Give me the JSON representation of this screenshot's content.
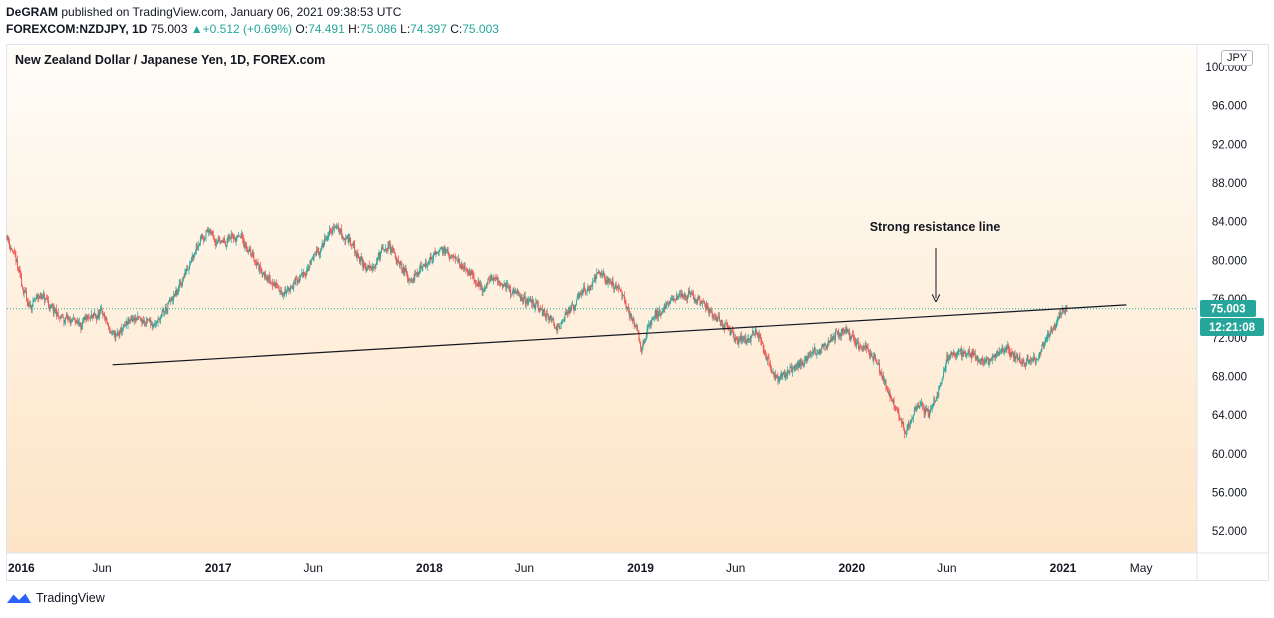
{
  "header": {
    "author": "DeGRAM",
    "published_text": "published on TradingView.com, January 06, 2021 09:38:53 UTC",
    "symbol": "FOREXCOM:NZDJPY",
    "interval": "1D",
    "last": "75.003",
    "change": "+0.512 (+0.69%)",
    "o_label": "O:",
    "o_value": "74.491",
    "h_label": "H:",
    "h_value": "75.086",
    "l_label": "L:",
    "l_value": "74.397",
    "c_label": "C:",
    "c_value": "75.003"
  },
  "chart_title": "New Zealand Dollar / Japanese Yen, 1D, FOREX.com",
  "currency": "JPY",
  "annotation": "Strong resistance line",
  "price_badge": "75.003",
  "countdown_badge": "12:21:08",
  "footer": {
    "brand": "TradingView"
  },
  "colors": {
    "up": "#26a69a",
    "down": "#ef5350",
    "line": "#131722",
    "badge": "#26a69a"
  },
  "chart_data": {
    "type": "candlestick",
    "title": "New Zealand Dollar / Japanese Yen, 1D, FOREX.com",
    "ylim": [
      49.5,
      101
    ],
    "y_ticks": [
      "100.000",
      "96.000",
      "92.000",
      "88.000",
      "84.000",
      "80.000",
      "76.000",
      "72.000",
      "68.000",
      "64.000",
      "60.000",
      "56.000",
      "52.000"
    ],
    "y_tick_values": [
      100,
      96,
      92,
      88,
      84,
      80,
      76,
      72,
      68,
      64,
      60,
      56,
      52
    ],
    "x_range": [
      2016.0,
      2021.55
    ],
    "x_ticks": [
      {
        "label": "2016",
        "t": 2016.0
      },
      {
        "label": "Jun",
        "t": 2016.45
      },
      {
        "label": "2017",
        "t": 2017.0
      },
      {
        "label": "Jun",
        "t": 2017.45
      },
      {
        "label": "2018",
        "t": 2018.0
      },
      {
        "label": "Jun",
        "t": 2018.45
      },
      {
        "label": "2019",
        "t": 2019.0
      },
      {
        "label": "Jun",
        "t": 2019.45
      },
      {
        "label": "2020",
        "t": 2020.0
      },
      {
        "label": "Jun",
        "t": 2020.45
      },
      {
        "label": "2021",
        "t": 2021.0
      },
      {
        "label": "May",
        "t": 2021.37
      }
    ],
    "series_anchors": [
      [
        2016.0,
        82.5
      ],
      [
        2016.05,
        79
      ],
      [
        2016.1,
        75
      ],
      [
        2016.15,
        76.5
      ],
      [
        2016.25,
        74
      ],
      [
        2016.35,
        73.5
      ],
      [
        2016.45,
        74.5
      ],
      [
        2016.5,
        72
      ],
      [
        2016.6,
        74
      ],
      [
        2016.7,
        73.5
      ],
      [
        2016.8,
        76.5
      ],
      [
        2016.9,
        82
      ],
      [
        2016.95,
        83
      ],
      [
        2017.0,
        82
      ],
      [
        2017.1,
        82.5
      ],
      [
        2017.2,
        79
      ],
      [
        2017.3,
        76.5
      ],
      [
        2017.4,
        78.5
      ],
      [
        2017.5,
        82
      ],
      [
        2017.55,
        83.5
      ],
      [
        2017.6,
        82.5
      ],
      [
        2017.7,
        79
      ],
      [
        2017.8,
        81.5
      ],
      [
        2017.85,
        80
      ],
      [
        2017.9,
        78
      ],
      [
        2018.0,
        80
      ],
      [
        2018.05,
        81.5
      ],
      [
        2018.15,
        79.5
      ],
      [
        2018.25,
        77
      ],
      [
        2018.3,
        78.5
      ],
      [
        2018.4,
        76.5
      ],
      [
        2018.5,
        75.5
      ],
      [
        2018.6,
        73
      ],
      [
        2018.7,
        76
      ],
      [
        2018.8,
        78.5
      ],
      [
        2018.9,
        77
      ],
      [
        2018.97,
        73.5
      ],
      [
        2019.0,
        71
      ],
      [
        2019.05,
        74
      ],
      [
        2019.15,
        76
      ],
      [
        2019.25,
        76.5
      ],
      [
        2019.35,
        74
      ],
      [
        2019.45,
        72
      ],
      [
        2019.5,
        71.5
      ],
      [
        2019.55,
        72.5
      ],
      [
        2019.6,
        69.5
      ],
      [
        2019.65,
        67.5
      ],
      [
        2019.7,
        68.5
      ],
      [
        2019.8,
        70
      ],
      [
        2019.9,
        72
      ],
      [
        2019.95,
        73
      ],
      [
        2020.0,
        72
      ],
      [
        2020.1,
        70
      ],
      [
        2020.2,
        65
      ],
      [
        2020.25,
        62
      ],
      [
        2020.3,
        65
      ],
      [
        2020.38,
        64.5
      ],
      [
        2020.45,
        70
      ],
      [
        2020.55,
        70.5
      ],
      [
        2020.65,
        69.5
      ],
      [
        2020.72,
        71
      ],
      [
        2020.8,
        69.5
      ],
      [
        2020.88,
        70
      ],
      [
        2020.93,
        72.5
      ],
      [
        2020.98,
        74.5
      ],
      [
        2021.02,
        75.0
      ]
    ],
    "last_close": 75.003,
    "resistance_line": {
      "x1": 2016.5,
      "y1": 69.2,
      "x2": 2021.3,
      "y2": 75.4
    },
    "dotted_price_line": 75.003
  }
}
